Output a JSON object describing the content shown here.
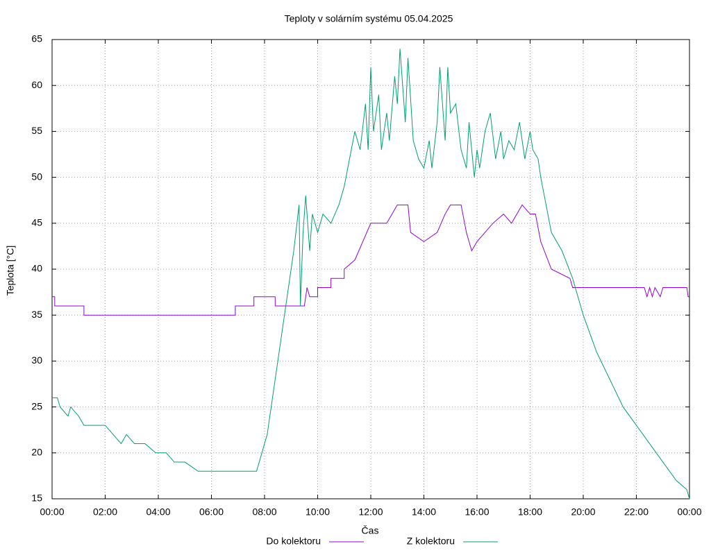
{
  "chart_data": {
    "type": "line",
    "title": "Teploty v solárním systému 05.04.2025",
    "xlabel": "Čas",
    "ylabel": "Teplota [°C]",
    "xlim": [
      0,
      24
    ],
    "xticks": [
      {
        "value": 0,
        "label": "00:00"
      },
      {
        "value": 2,
        "label": "02:00"
      },
      {
        "value": 4,
        "label": "04:00"
      },
      {
        "value": 6,
        "label": "06:00"
      },
      {
        "value": 8,
        "label": "08:00"
      },
      {
        "value": 10,
        "label": "10:00"
      },
      {
        "value": 12,
        "label": "12:00"
      },
      {
        "value": 14,
        "label": "14:00"
      },
      {
        "value": 16,
        "label": "16:00"
      },
      {
        "value": 18,
        "label": "18:00"
      },
      {
        "value": 20,
        "label": "20:00"
      },
      {
        "value": 22,
        "label": "22:00"
      },
      {
        "value": 24,
        "label": "00:00"
      }
    ],
    "ylim": [
      15,
      65
    ],
    "yticks": [
      15,
      20,
      25,
      30,
      35,
      40,
      45,
      50,
      55,
      60,
      65
    ],
    "grid": true,
    "series": [
      {
        "name": "Do kolektoru",
        "color": "#9400d3",
        "x": [
          0,
          0.1,
          0.1,
          1.2,
          1.2,
          6.9,
          6.9,
          7.6,
          7.6,
          8.4,
          8.4,
          9.5,
          9.6,
          9.7,
          10,
          10,
          10.5,
          10.5,
          11,
          11,
          11.4,
          11.7,
          12,
          12.6,
          13,
          13.4,
          13.5,
          14,
          14.5,
          14.8,
          15,
          15.4,
          15.6,
          15.8,
          16,
          16.3,
          16.6,
          17,
          17.3,
          17.7,
          18,
          18.2,
          18.4,
          18.8,
          19.5,
          19.6,
          22.3,
          22.4,
          22.5,
          22.6,
          22.7,
          22.9,
          23,
          23.9,
          23.95,
          24
        ],
        "values": [
          37,
          37,
          36,
          36,
          35,
          35,
          36,
          36,
          37,
          37,
          36,
          36,
          38,
          37,
          37,
          38,
          38,
          39,
          39,
          40,
          41,
          43,
          45,
          45,
          47,
          47,
          44,
          43,
          44,
          46,
          47,
          47,
          44,
          42,
          43,
          44,
          45,
          46,
          45,
          47,
          46,
          46,
          43,
          40,
          39,
          38,
          38,
          37,
          38,
          37,
          38,
          37,
          38,
          38,
          37,
          37
        ]
      },
      {
        "name": "Z kolektoru",
        "color": "#009e73",
        "x": [
          0,
          0.2,
          0.3,
          0.6,
          0.7,
          1,
          1.2,
          2,
          2.3,
          2.6,
          2.8,
          3.1,
          3.5,
          3.9,
          4.3,
          4.6,
          5,
          5.5,
          6.5,
          7.7,
          7.9,
          8.1,
          8.3,
          8.5,
          8.7,
          8.9,
          9.1,
          9.3,
          9.35,
          9.45,
          9.55,
          9.7,
          9.8,
          10,
          10.2,
          10.5,
          10.8,
          11,
          11.2,
          11.4,
          11.6,
          11.8,
          11.9,
          12,
          12.1,
          12.3,
          12.4,
          12.6,
          12.7,
          12.9,
          13,
          13.1,
          13.3,
          13.4,
          13.6,
          13.8,
          14,
          14.2,
          14.3,
          14.5,
          14.6,
          14.8,
          14.9,
          15,
          15.2,
          15.4,
          15.6,
          15.7,
          15.9,
          16,
          16.1,
          16.3,
          16.5,
          16.7,
          16.9,
          17,
          17.2,
          17.4,
          17.6,
          17.8,
          18,
          18.1,
          18.3,
          18.4,
          18.6,
          18.8,
          19.2,
          19.6,
          20,
          20.5,
          21,
          21.5,
          22,
          22.5,
          23,
          23.5,
          23.9,
          24
        ],
        "values": [
          26,
          26,
          25,
          24,
          25,
          24,
          23,
          23,
          22,
          21,
          22,
          21,
          21,
          20,
          20,
          19,
          19,
          18,
          18,
          18,
          20,
          22,
          26,
          30,
          34,
          38,
          42,
          47,
          36,
          44,
          48,
          42,
          46,
          44,
          46,
          45,
          47,
          49,
          52,
          55,
          53,
          58,
          53,
          62,
          55,
          59,
          53,
          57,
          54,
          61,
          58,
          64,
          56,
          63,
          54,
          52,
          51,
          54,
          51,
          56,
          62,
          54,
          62,
          57,
          58,
          53,
          51,
          56,
          50,
          53,
          51,
          55,
          57,
          52,
          55,
          52,
          54,
          53,
          56,
          52,
          55,
          53,
          52,
          50,
          47,
          44,
          42,
          39,
          35,
          31,
          28,
          25,
          23,
          21,
          19,
          17,
          16,
          15
        ]
      }
    ]
  }
}
